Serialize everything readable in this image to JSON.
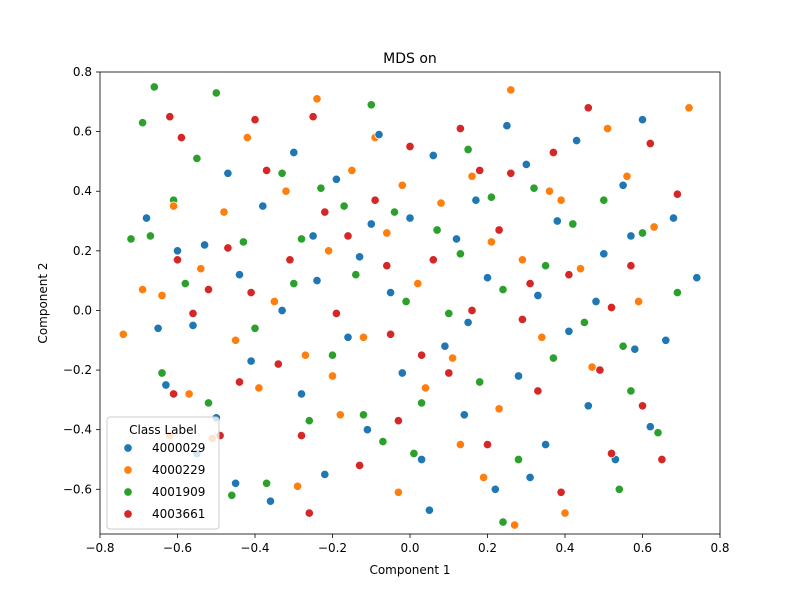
{
  "chart_data": {
    "type": "scatter",
    "title": "MDS on",
    "xlabel": "Component 1",
    "ylabel": "Component 2",
    "xlim": [
      -0.8,
      0.8
    ],
    "ylim": [
      -0.75,
      0.8
    ],
    "xticks": [
      -0.8,
      -0.6,
      -0.4,
      -0.2,
      0.0,
      0.2,
      0.4,
      0.6,
      0.8
    ],
    "xtick_labels": [
      "−0.8",
      "−0.6",
      "−0.4",
      "−0.2",
      "0.0",
      "0.2",
      "0.4",
      "0.6",
      "0.8"
    ],
    "yticks": [
      -0.6,
      -0.4,
      -0.2,
      0.0,
      0.2,
      0.4,
      0.6,
      0.8
    ],
    "ytick_labels": [
      "−0.6",
      "−0.4",
      "−0.2",
      "0.0",
      "0.2",
      "0.4",
      "0.6",
      "0.8"
    ],
    "grid": false,
    "legend": {
      "title": "Class Label",
      "placement": "lower-left"
    },
    "series": [
      {
        "name": "4000029",
        "color": "#1f77b4",
        "points": [
          [
            0.74,
            0.11
          ],
          [
            0.68,
            0.31
          ],
          [
            0.66,
            -0.1
          ],
          [
            0.62,
            -0.39
          ],
          [
            0.6,
            0.64
          ],
          [
            0.58,
            -0.13
          ],
          [
            0.55,
            0.42
          ],
          [
            0.53,
            -0.5
          ],
          [
            0.5,
            0.19
          ],
          [
            0.46,
            -0.32
          ],
          [
            0.43,
            0.57
          ],
          [
            0.41,
            -0.07
          ],
          [
            0.38,
            0.3
          ],
          [
            0.35,
            -0.45
          ],
          [
            0.33,
            0.05
          ],
          [
            0.3,
            0.49
          ],
          [
            0.28,
            -0.22
          ],
          [
            0.25,
            0.62
          ],
          [
            0.22,
            -0.6
          ],
          [
            0.2,
            0.11
          ],
          [
            0.17,
            0.37
          ],
          [
            0.14,
            -0.35
          ],
          [
            0.12,
            0.24
          ],
          [
            0.09,
            -0.12
          ],
          [
            0.06,
            0.52
          ],
          [
            0.03,
            -0.5
          ],
          [
            0.0,
            0.31
          ],
          [
            -0.02,
            -0.21
          ],
          [
            -0.05,
            0.06
          ],
          [
            -0.08,
            0.59
          ],
          [
            -0.11,
            -0.4
          ],
          [
            -0.13,
            0.18
          ],
          [
            -0.16,
            -0.09
          ],
          [
            -0.19,
            0.44
          ],
          [
            -0.22,
            -0.55
          ],
          [
            -0.25,
            0.25
          ],
          [
            -0.28,
            -0.28
          ],
          [
            -0.3,
            0.53
          ],
          [
            -0.33,
            0.0
          ],
          [
            -0.36,
            -0.64
          ],
          [
            -0.38,
            0.35
          ],
          [
            -0.41,
            -0.17
          ],
          [
            -0.44,
            0.12
          ],
          [
            -0.47,
            0.46
          ],
          [
            -0.5,
            -0.36
          ],
          [
            -0.53,
            0.22
          ],
          [
            -0.56,
            -0.05
          ],
          [
            -0.6,
            0.2
          ],
          [
            -0.63,
            -0.25
          ],
          [
            -0.65,
            -0.06
          ],
          [
            -0.68,
            0.31
          ],
          [
            -0.55,
            -0.48
          ],
          [
            0.48,
            0.03
          ],
          [
            0.15,
            -0.04
          ],
          [
            -0.1,
            0.29
          ],
          [
            0.31,
            -0.56
          ],
          [
            -0.24,
            0.1
          ],
          [
            0.57,
            0.25
          ],
          [
            -0.45,
            -0.58
          ],
          [
            0.05,
            -0.67
          ]
        ]
      },
      {
        "name": "4000229",
        "color": "#ff7f0e",
        "points": [
          [
            0.72,
            0.68
          ],
          [
            0.63,
            0.28
          ],
          [
            0.59,
            0.03
          ],
          [
            0.56,
            0.45
          ],
          [
            0.51,
            0.61
          ],
          [
            0.47,
            -0.19
          ],
          [
            0.44,
            0.14
          ],
          [
            0.4,
            -0.68
          ],
          [
            0.36,
            0.4
          ],
          [
            0.34,
            -0.09
          ],
          [
            0.29,
            0.17
          ],
          [
            0.26,
            0.74
          ],
          [
            0.23,
            -0.33
          ],
          [
            0.19,
            -0.56
          ],
          [
            0.16,
            0.45
          ],
          [
            0.11,
            -0.16
          ],
          [
            0.08,
            0.36
          ],
          [
            0.04,
            -0.26
          ],
          [
            0.02,
            0.09
          ],
          [
            -0.03,
            -0.61
          ],
          [
            -0.06,
            0.26
          ],
          [
            -0.09,
            0.58
          ],
          [
            -0.12,
            -0.09
          ],
          [
            -0.15,
            0.47
          ],
          [
            -0.18,
            -0.35
          ],
          [
            -0.21,
            0.2
          ],
          [
            -0.24,
            0.71
          ],
          [
            -0.27,
            -0.15
          ],
          [
            -0.29,
            -0.59
          ],
          [
            -0.32,
            0.4
          ],
          [
            -0.35,
            0.03
          ],
          [
            -0.39,
            -0.26
          ],
          [
            -0.42,
            0.58
          ],
          [
            -0.45,
            -0.1
          ],
          [
            -0.48,
            0.33
          ],
          [
            -0.51,
            -0.43
          ],
          [
            -0.54,
            0.14
          ],
          [
            -0.57,
            -0.28
          ],
          [
            -0.61,
            0.35
          ],
          [
            -0.64,
            0.05
          ],
          [
            -0.66,
            0.75
          ],
          [
            -0.69,
            0.07
          ],
          [
            -0.74,
            -0.08
          ],
          [
            -0.62,
            -0.42
          ],
          [
            0.27,
            -0.72
          ],
          [
            0.21,
            0.23
          ],
          [
            -0.02,
            0.42
          ],
          [
            0.13,
            -0.45
          ],
          [
            -0.2,
            -0.22
          ],
          [
            0.39,
            0.37
          ]
        ]
      },
      {
        "name": "4001909",
        "color": "#2ca02c",
        "points": [
          [
            0.69,
            0.06
          ],
          [
            0.64,
            -0.41
          ],
          [
            0.6,
            0.26
          ],
          [
            0.57,
            -0.27
          ],
          [
            0.54,
            -0.6
          ],
          [
            0.5,
            0.37
          ],
          [
            0.45,
            -0.04
          ],
          [
            0.42,
            0.29
          ],
          [
            0.37,
            -0.16
          ],
          [
            0.32,
            0.41
          ],
          [
            0.28,
            -0.5
          ],
          [
            0.24,
            0.07
          ],
          [
            0.21,
            0.38
          ],
          [
            0.18,
            -0.24
          ],
          [
            0.15,
            0.54
          ],
          [
            0.1,
            -0.01
          ],
          [
            0.07,
            0.27
          ],
          [
            0.03,
            -0.31
          ],
          [
            -0.01,
            0.03
          ],
          [
            -0.04,
            0.33
          ],
          [
            -0.07,
            -0.44
          ],
          [
            -0.1,
            0.69
          ],
          [
            -0.14,
            0.12
          ],
          [
            -0.17,
            0.35
          ],
          [
            -0.2,
            -0.15
          ],
          [
            -0.23,
            0.41
          ],
          [
            -0.26,
            -0.37
          ],
          [
            -0.3,
            0.09
          ],
          [
            -0.33,
            0.46
          ],
          [
            -0.37,
            -0.58
          ],
          [
            -0.4,
            -0.06
          ],
          [
            -0.43,
            0.23
          ],
          [
            -0.46,
            -0.62
          ],
          [
            -0.5,
            0.73
          ],
          [
            -0.52,
            -0.31
          ],
          [
            -0.55,
            0.51
          ],
          [
            -0.58,
            0.09
          ],
          [
            -0.61,
            0.37
          ],
          [
            -0.64,
            -0.21
          ],
          [
            -0.67,
            0.25
          ],
          [
            -0.69,
            0.63
          ],
          [
            -0.72,
            0.24
          ],
          [
            -0.66,
            0.75
          ],
          [
            0.24,
            -0.71
          ],
          [
            -0.12,
            -0.35
          ],
          [
            0.13,
            0.19
          ],
          [
            0.35,
            0.15
          ],
          [
            -0.28,
            0.24
          ],
          [
            0.55,
            -0.12
          ],
          [
            0.01,
            -0.48
          ]
        ]
      },
      {
        "name": "4003661",
        "color": "#d62728",
        "points": [
          [
            0.69,
            0.39
          ],
          [
            0.65,
            -0.5
          ],
          [
            0.62,
            0.56
          ],
          [
            0.6,
            -0.32
          ],
          [
            0.57,
            0.15
          ],
          [
            0.52,
            0.01
          ],
          [
            0.49,
            -0.2
          ],
          [
            0.46,
            0.68
          ],
          [
            0.41,
            0.12
          ],
          [
            0.39,
            -0.61
          ],
          [
            0.37,
            0.53
          ],
          [
            0.33,
            -0.27
          ],
          [
            0.29,
            -0.03
          ],
          [
            0.26,
            0.46
          ],
          [
            0.23,
            0.27
          ],
          [
            0.2,
            -0.45
          ],
          [
            0.16,
            0.0
          ],
          [
            0.13,
            0.61
          ],
          [
            0.1,
            -0.21
          ],
          [
            0.06,
            0.17
          ],
          [
            0.03,
            -0.15
          ],
          [
            0.0,
            0.55
          ],
          [
            -0.03,
            -0.37
          ],
          [
            -0.06,
            0.15
          ],
          [
            -0.09,
            0.37
          ],
          [
            -0.13,
            -0.52
          ],
          [
            -0.16,
            0.25
          ],
          [
            -0.19,
            -0.01
          ],
          [
            -0.22,
            0.33
          ],
          [
            -0.25,
            0.65
          ],
          [
            -0.28,
            -0.42
          ],
          [
            -0.31,
            0.17
          ],
          [
            -0.34,
            -0.18
          ],
          [
            -0.37,
            0.47
          ],
          [
            -0.4,
            0.64
          ],
          [
            -0.44,
            -0.24
          ],
          [
            -0.47,
            0.21
          ],
          [
            -0.49,
            -0.42
          ],
          [
            -0.52,
            0.07
          ],
          [
            -0.56,
            -0.01
          ],
          [
            -0.59,
            0.58
          ],
          [
            -0.61,
            -0.28
          ],
          [
            -0.62,
            0.65
          ],
          [
            -0.6,
            0.17
          ],
          [
            -0.26,
            -0.68
          ],
          [
            0.52,
            -0.48
          ],
          [
            0.31,
            0.09
          ],
          [
            -0.05,
            -0.08
          ],
          [
            0.18,
            0.47
          ],
          [
            -0.41,
            0.06
          ]
        ]
      }
    ]
  }
}
